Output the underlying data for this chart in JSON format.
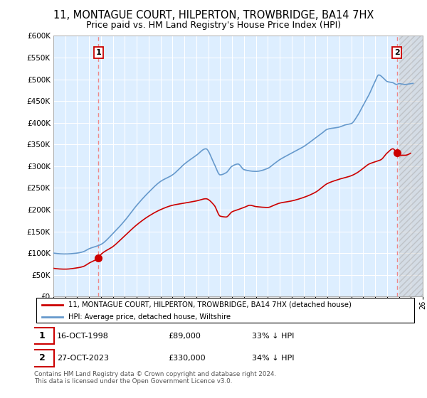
{
  "title": "11, MONTAGUE COURT, HILPERTON, TROWBRIDGE, BA14 7HX",
  "subtitle": "Price paid vs. HM Land Registry's House Price Index (HPI)",
  "legend_label_red": "11, MONTAGUE COURT, HILPERTON, TROWBRIDGE, BA14 7HX (detached house)",
  "legend_label_blue": "HPI: Average price, detached house, Wiltshire",
  "note1_date": "16-OCT-1998",
  "note1_price": "£89,000",
  "note1_hpi": "33% ↓ HPI",
  "note2_date": "27-OCT-2023",
  "note2_price": "£330,000",
  "note2_hpi": "34% ↓ HPI",
  "footer": "Contains HM Land Registry data © Crown copyright and database right 2024.\nThis data is licensed under the Open Government Licence v3.0.",
  "ylim": [
    0,
    600000
  ],
  "yticks": [
    0,
    50000,
    100000,
    150000,
    200000,
    250000,
    300000,
    350000,
    400000,
    450000,
    500000,
    550000,
    600000
  ],
  "sale1_year": 1998.79,
  "sale1_price": 89000,
  "sale2_year": 2023.82,
  "sale2_price": 330000,
  "xlim_left": 1995,
  "xlim_right": 2026,
  "red_color": "#cc0000",
  "blue_color": "#6699cc",
  "bg_color": "#ffffff",
  "chart_bg_color": "#ddeeff",
  "grid_color": "#aabbcc",
  "vline_color": "#ee8888",
  "title_fontsize": 10.5,
  "subtitle_fontsize": 9
}
